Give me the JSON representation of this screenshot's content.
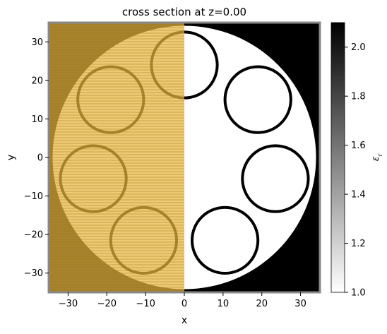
{
  "chart_data": {
    "type": "heatmap",
    "title": "cross section at z=0.00",
    "xlabel": "x",
    "ylabel": "y",
    "xlim": [
      -35,
      35
    ],
    "ylim": [
      -35,
      35
    ],
    "x_ticks": [
      -30,
      -20,
      -10,
      0,
      10,
      20,
      30
    ],
    "y_ticks": [
      -30,
      -20,
      -10,
      0,
      10,
      20,
      30
    ],
    "colorbar": {
      "label": "ε_r",
      "min": 1.0,
      "max": 2.1,
      "ticks": [
        1.0,
        1.2,
        1.4,
        1.6,
        1.8,
        2.0
      ],
      "colormap": "gray_r"
    },
    "background_permittivity": 2.1,
    "outer_disk": {
      "center": [
        0,
        0
      ],
      "radius": 34,
      "permittivity": 1.0
    },
    "rings": [
      {
        "center": [
          0,
          24
        ],
        "radius": 8.5
      },
      {
        "center": [
          19,
          15
        ],
        "radius": 8.5
      },
      {
        "center": [
          23.5,
          -5.5
        ],
        "radius": 8.5
      },
      {
        "center": [
          10.5,
          -21.5
        ],
        "radius": 8.5
      },
      {
        "center": [
          -10.5,
          -21.5
        ],
        "radius": 8.5
      },
      {
        "center": [
          -23.5,
          -5.5
        ],
        "radius": 8.5
      },
      {
        "center": [
          -19,
          15
        ],
        "radius": 8.5
      }
    ],
    "overlay": {
      "x_range": [
        -35,
        0
      ],
      "color": "#e8b640",
      "hatch": "horizontal"
    }
  }
}
